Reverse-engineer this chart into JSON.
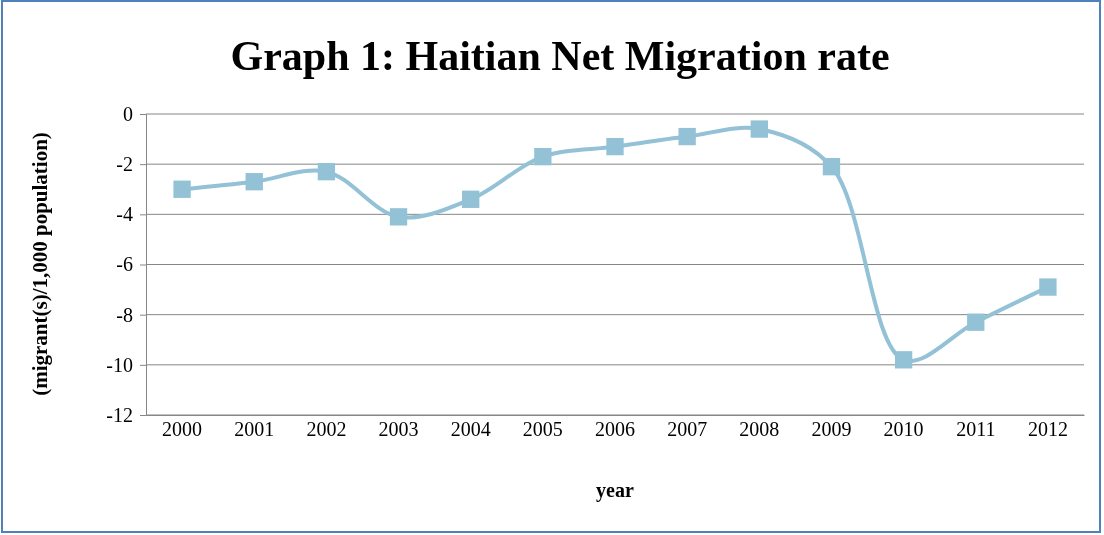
{
  "chart_data": {
    "type": "line",
    "title": "Graph 1: Haitian Net Migration rate",
    "xlabel": "year",
    "ylabel": "(migrant(s)/1,000 population)",
    "categories": [
      "2000",
      "2001",
      "2002",
      "2003",
      "2004",
      "2005",
      "2006",
      "2007",
      "2008",
      "2009",
      "2010",
      "2011",
      "2012"
    ],
    "series": [
      {
        "color": "#93c1d5",
        "values": [
          -3.0,
          -2.7,
          -2.3,
          -4.1,
          -3.4,
          -1.7,
          -1.3,
          -0.9,
          -0.6,
          -2.1,
          -9.8,
          -8.3,
          -6.9
        ]
      }
    ],
    "ylim": [
      -12,
      0
    ],
    "yticks": [
      -12,
      -10,
      -8,
      -6,
      -4,
      -2,
      0
    ],
    "grid": "y",
    "marker": "square",
    "line_style": "solid"
  }
}
